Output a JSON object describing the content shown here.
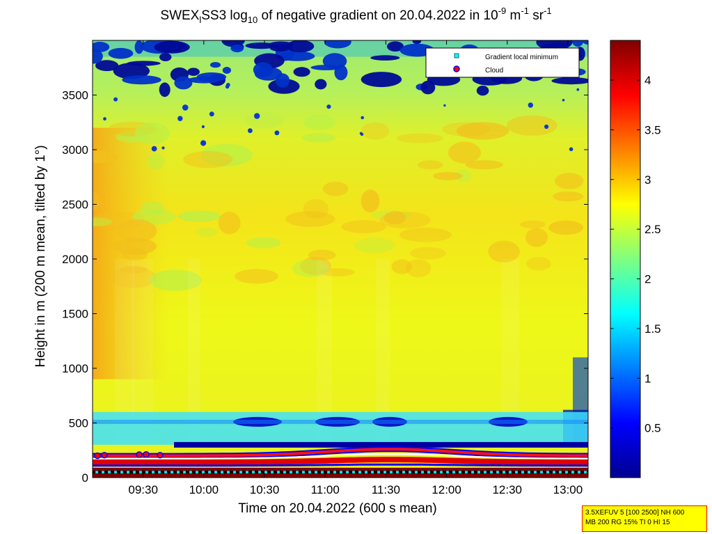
{
  "title": {
    "part1": "SWEX",
    "sub1": "l",
    "part2": "SS3 log",
    "sub2": "10",
    "part3": " of negative gradient on 20.04.2022 in 10",
    "sup1": "-9",
    "part4": " m",
    "sup2": "-1",
    "part5": " sr",
    "sup3": "-1"
  },
  "legend": {
    "items": [
      {
        "label": "Gradient local minimum",
        "color": "#00ffff"
      },
      {
        "label": "Cloud",
        "color": "#ff0000"
      }
    ]
  },
  "info_box": {
    "line1": "3.5XEFUV 5 [100 2500] NH 600",
    "line2": "MB 200 RG 15% TI 0 HI 15"
  },
  "chart_data": {
    "type": "heatmap",
    "xlabel": "Time on 20.04.2022 (600 s mean)",
    "ylabel": "Height in m (200 m mean, tilted by 1°)",
    "x_range": [
      "09:05",
      "13:10"
    ],
    "xticks": [
      "09:30",
      "10:00",
      "10:30",
      "11:00",
      "11:30",
      "12:00",
      "12:30",
      "13:00"
    ],
    "ylim": [
      0,
      4000
    ],
    "yticks": [
      0,
      500,
      1000,
      1500,
      2000,
      2500,
      3000,
      3500
    ],
    "colorbar": {
      "range": [
        0,
        4.4
      ],
      "ticks": [
        "0.5",
        "1",
        "1.5",
        "2",
        "2.5",
        "3",
        "3.5",
        "4"
      ],
      "colormap": "jet"
    },
    "features": {
      "cloud_layer_height_m": [
        200,
        250
      ],
      "gradient_minimum_height_m": 50,
      "low_band_height_m": 300,
      "mid_band_height_m": 510,
      "upper_noise_above_m": 3600
    }
  }
}
